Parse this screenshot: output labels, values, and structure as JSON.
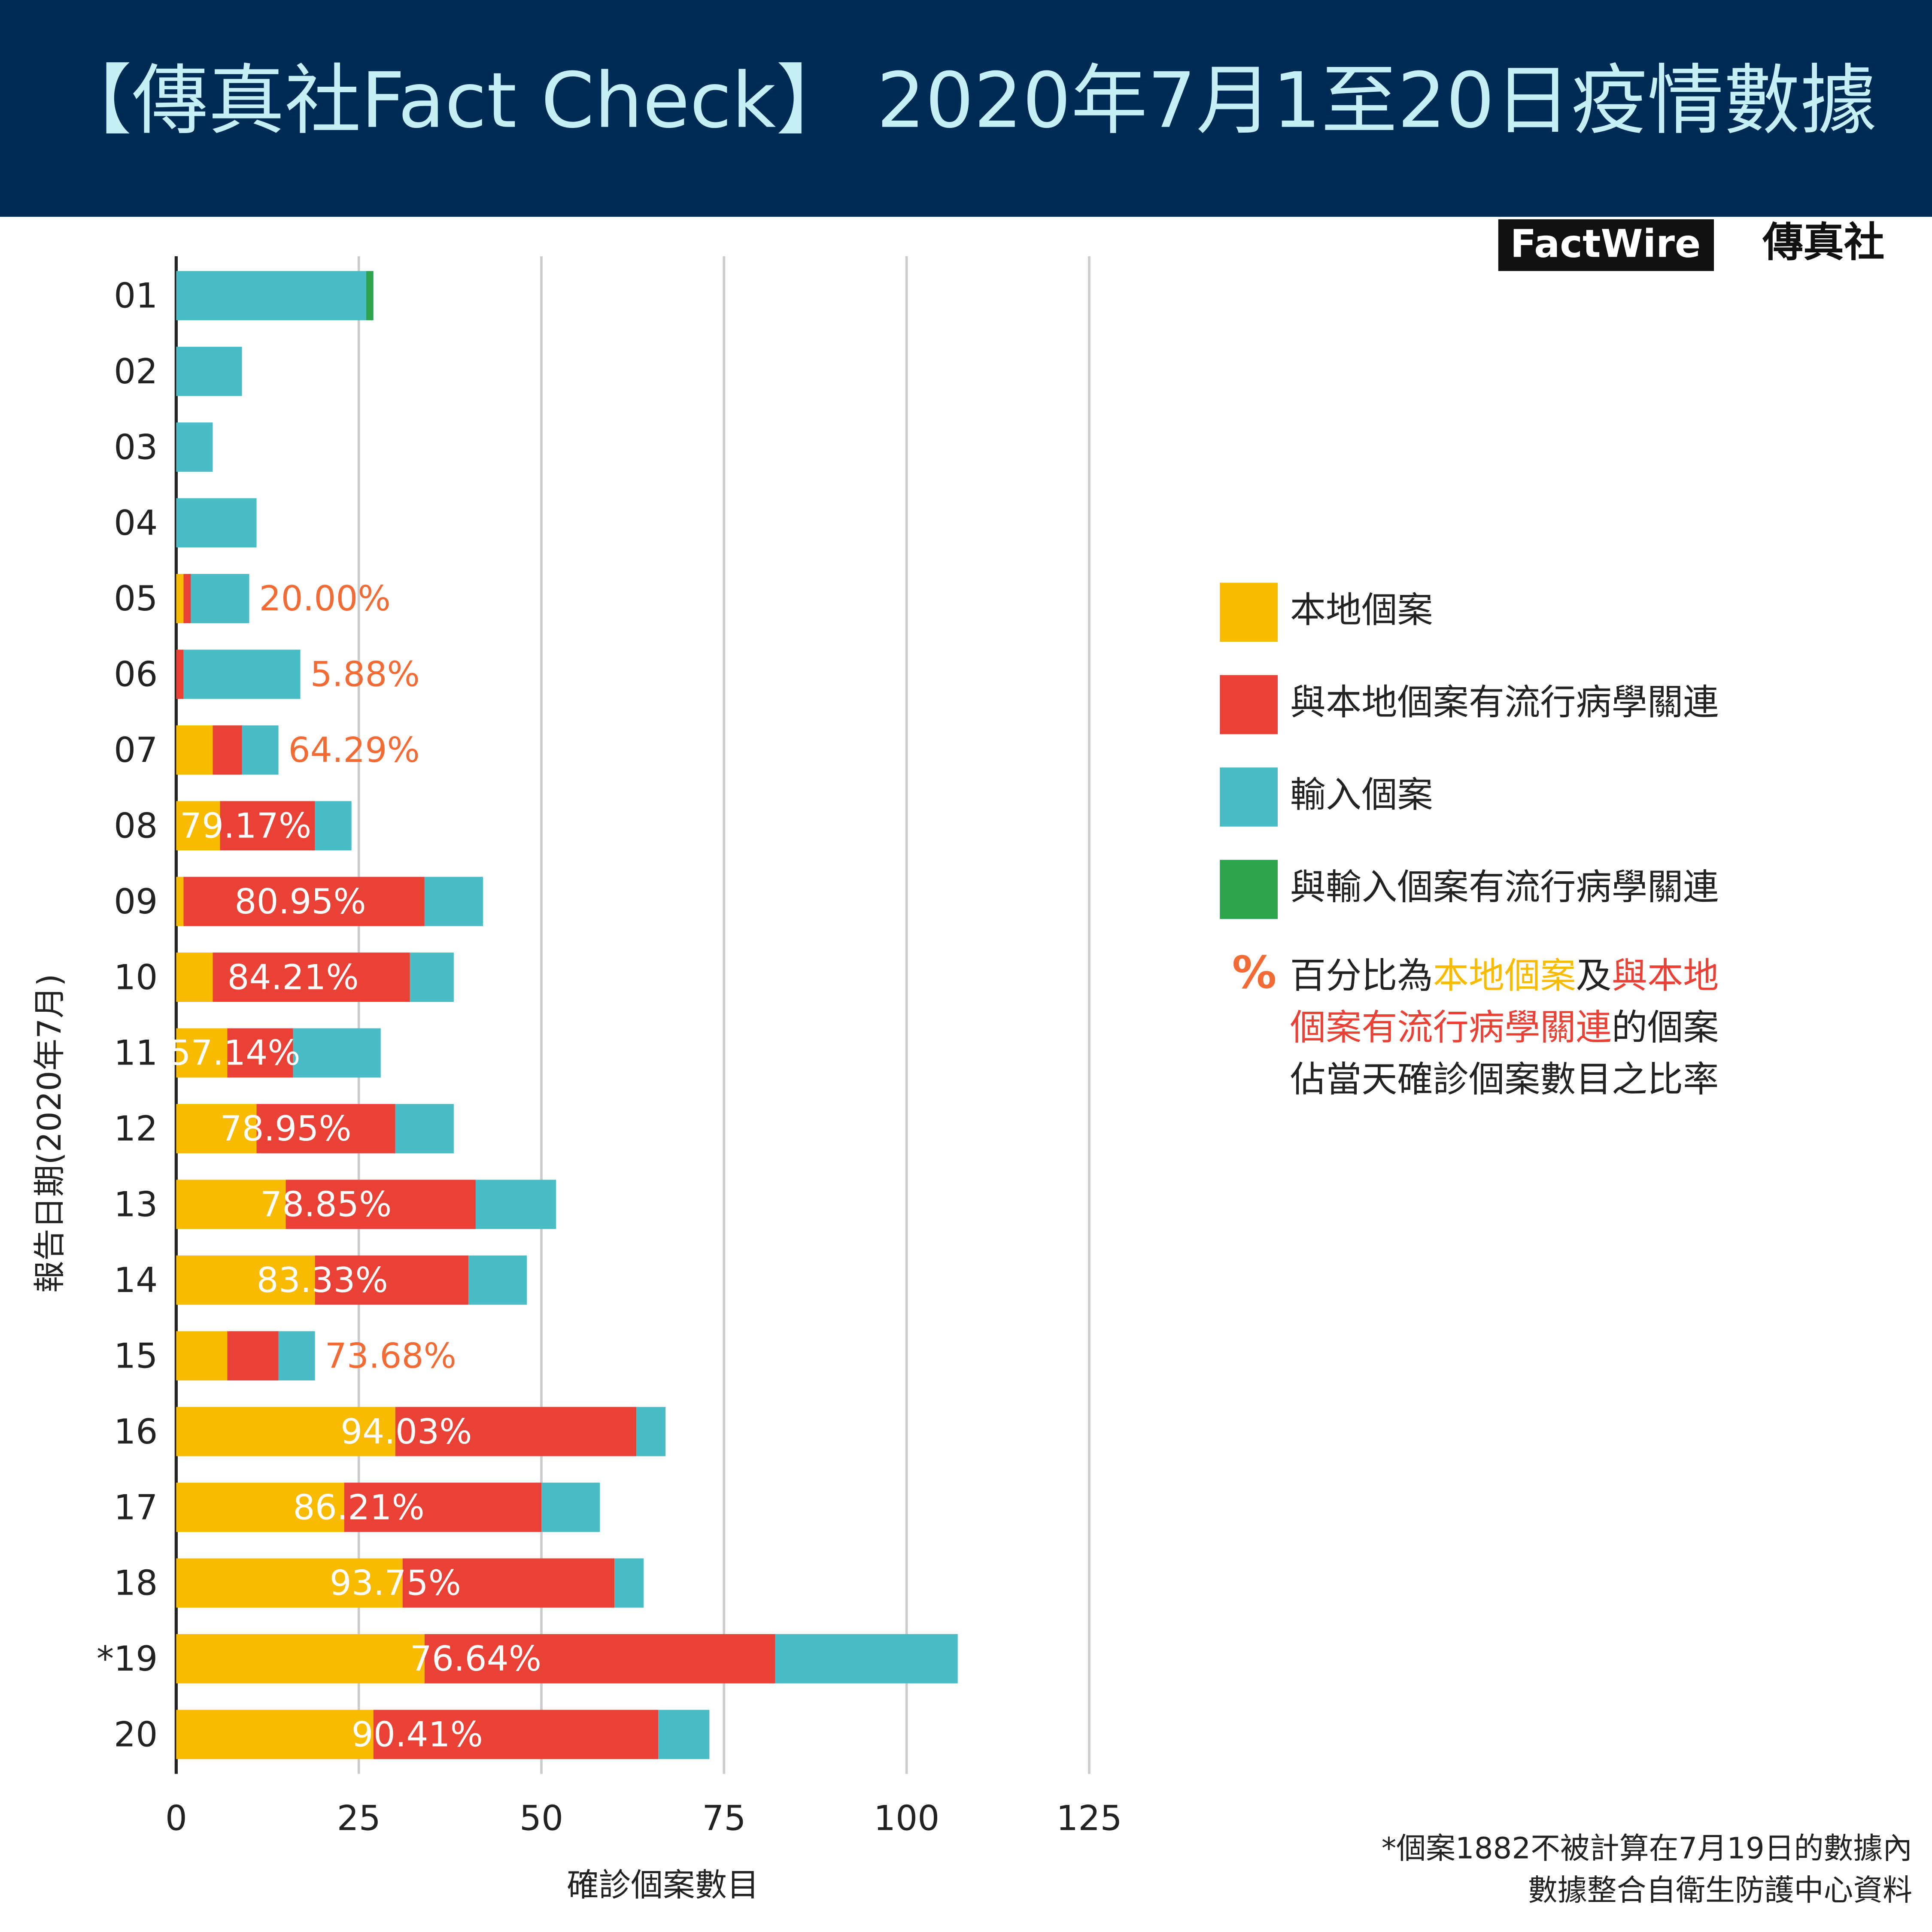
{
  "chart_data": {
    "type": "stacked-bar-horizontal",
    "title": "【傳真社Fact Check】 2020年7月1至20日疫情數據",
    "logo": [
      "FactWire",
      "傳真社"
    ],
    "x_label": "確診個案數目",
    "y_label": "報告日期(2020年7月)",
    "categories": [
      "01",
      "02",
      "03",
      "04",
      "05",
      "06",
      "07",
      "08",
      "09",
      "10",
      "11",
      "12",
      "13",
      "14",
      "15",
      "16",
      "17",
      "18",
      "*19",
      "20"
    ],
    "series": [
      {
        "name": "本地個案",
        "color": "#f9bb00",
        "values": [
          0,
          0,
          0,
          0,
          1,
          0,
          5,
          6,
          1,
          5,
          7,
          11,
          15,
          19,
          7,
          30,
          23,
          31,
          34,
          27
        ]
      },
      {
        "name": "與本地個案有流行病學關連",
        "color": "#e94135",
        "values": [
          0,
          0,
          0,
          0,
          1,
          1,
          4,
          13,
          33,
          27,
          9,
          19,
          26,
          21,
          7,
          33,
          27,
          29,
          48,
          39
        ]
      },
      {
        "name": "輸入個案",
        "color": "#49bcc6",
        "values": [
          26,
          9,
          5,
          11,
          8,
          16,
          5,
          5,
          8,
          6,
          12,
          8,
          11,
          8,
          5,
          4,
          8,
          4,
          25,
          7
        ]
      },
      {
        "name": "與輸入個案有流行病學關連",
        "color": "#2ea44f",
        "values": [
          1,
          0,
          0,
          0,
          0,
          0,
          0,
          0,
          0,
          0,
          0,
          0,
          0,
          0,
          0,
          0,
          0,
          0,
          0,
          0
        ]
      }
    ],
    "percent_labels": [
      null,
      null,
      null,
      null,
      "20.00%",
      "5.88%",
      "64.29%",
      "79.17%",
      "80.95%",
      "84.21%",
      "57.14%",
      "78.95%",
      "78.85%",
      "83.33%",
      "73.68%",
      "94.03%",
      "86.21%",
      "93.75%",
      "76.64%",
      "90.41%"
    ],
    "percent_color": "#f26b35",
    "xlim": [
      0,
      125
    ],
    "xticks": [
      0,
      25,
      50,
      75,
      100,
      125
    ],
    "grid": true,
    "note": {
      "symbol": "%",
      "lines": [
        [
          {
            "text": "百分比為"
          },
          {
            "text": "本地個案",
            "color": "#f9bb00"
          },
          {
            "text": "及"
          },
          {
            "text": "與本地",
            "color": "#e94135"
          }
        ],
        [
          {
            "text": "個案有流行病學關連",
            "color": "#e94135"
          },
          {
            "text": "的個案"
          }
        ],
        [
          {
            "text": "佔當天確診個案數目之比率"
          }
        ]
      ]
    },
    "footnotes": [
      "*個案1882不被計算在7月19日的數據內",
      "數據整合自衛生防護中心資料"
    ]
  }
}
